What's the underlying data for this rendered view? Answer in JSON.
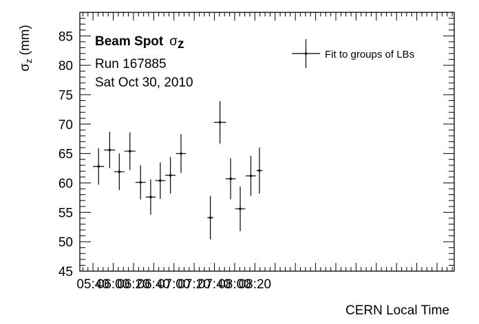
{
  "chart_data": {
    "type": "scatter",
    "x_unit": "minutes since midnight (CERN local time)",
    "xlabel": "CERN Local Time",
    "ylabel": {
      "symbol": "σ",
      "sub": "z",
      "unit": " (mm)"
    },
    "xlim": [
      327,
      697
    ],
    "ylim": [
      45,
      89
    ],
    "x_ticks": [
      {
        "v": 340,
        "label": "05:40"
      },
      {
        "v": 360,
        "label": "06:00"
      },
      {
        "v": 380,
        "label": "06:20"
      },
      {
        "v": 400,
        "label": "06:40"
      },
      {
        "v": 420,
        "label": "07:00"
      },
      {
        "v": 440,
        "label": "07:20"
      },
      {
        "v": 460,
        "label": "07:40"
      },
      {
        "v": 480,
        "label": "08:00"
      },
      {
        "v": 500,
        "label": "08:20"
      }
    ],
    "y_ticks": [
      {
        "v": 45,
        "label": "45"
      },
      {
        "v": 50,
        "label": "50"
      },
      {
        "v": 55,
        "label": "55"
      },
      {
        "v": 60,
        "label": "60"
      },
      {
        "v": 65,
        "label": "65"
      },
      {
        "v": 70,
        "label": "70"
      },
      {
        "v": 75,
        "label": "75"
      },
      {
        "v": 80,
        "label": "80"
      },
      {
        "v": 85,
        "label": "85"
      }
    ],
    "grid": false,
    "legend": {
      "placement": "top-right",
      "entry": "Fit to groups of LBs"
    },
    "info": {
      "title_bold": "Beam Spot",
      "title_symbol": "σ",
      "title_sub": "z",
      "run": "Run 167885",
      "date": "Sat Oct 30, 2010"
    },
    "series": [
      {
        "name": "Fit to groups of LBs",
        "points": [
          {
            "x": 345.5,
            "xerr": 5.5,
            "y": 62.8,
            "yerr": 3.1
          },
          {
            "x": 356.5,
            "xerr": 5.5,
            "y": 65.6,
            "yerr": 3.1
          },
          {
            "x": 366.0,
            "xerr": 5.0,
            "y": 61.9,
            "yerr": 3.1
          },
          {
            "x": 376.5,
            "xerr": 5.5,
            "y": 65.4,
            "yerr": 3.2
          },
          {
            "x": 387.0,
            "xerr": 5.0,
            "y": 60.1,
            "yerr": 2.9
          },
          {
            "x": 397.0,
            "xerr": 5.0,
            "y": 57.6,
            "yerr": 3.0
          },
          {
            "x": 406.5,
            "xerr": 5.0,
            "y": 60.4,
            "yerr": 3.1
          },
          {
            "x": 416.5,
            "xerr": 5.0,
            "y": 61.3,
            "yerr": 3.1
          },
          {
            "x": 427.0,
            "xerr": 5.0,
            "y": 65.0,
            "yerr": 3.3
          },
          {
            "x": 456.0,
            "xerr": 3.0,
            "y": 54.1,
            "yerr": 3.7
          },
          {
            "x": 465.5,
            "xerr": 6.0,
            "y": 70.3,
            "yerr": 3.6
          },
          {
            "x": 476.0,
            "xerr": 5.0,
            "y": 60.7,
            "yerr": 3.5
          },
          {
            "x": 485.5,
            "xerr": 5.0,
            "y": 55.6,
            "yerr": 3.8
          },
          {
            "x": 496.0,
            "xerr": 5.0,
            "y": 61.2,
            "yerr": 3.4
          },
          {
            "x": 504.5,
            "xerr": 3.0,
            "y": 62.1,
            "yerr": 3.9
          }
        ]
      }
    ]
  }
}
